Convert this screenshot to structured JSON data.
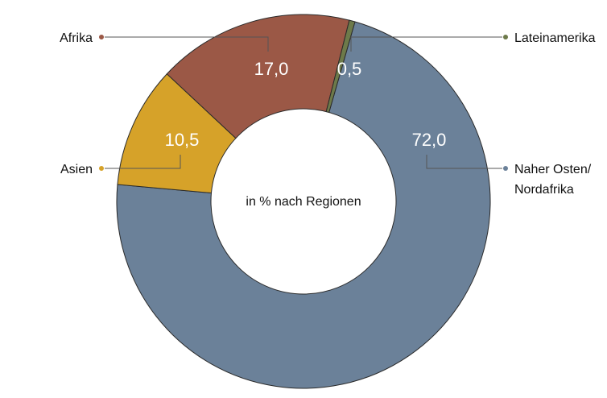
{
  "chart_data": {
    "type": "pie",
    "donut": true,
    "center_label": "in % nach Regionen",
    "categories": [
      "Naher Osten/ Nordafrika",
      "Asien",
      "Afrika",
      "Lateinamerika"
    ],
    "values": [
      72.0,
      10.5,
      17.0,
      0.5
    ],
    "value_labels": [
      "72,0",
      "10,5",
      "17,0",
      "0,5"
    ],
    "colors": [
      "#6b8199",
      "#d6a229",
      "#9b5846",
      "#6d7a4a"
    ],
    "legend": [
      {
        "lines": [
          "Naher Osten/",
          "Nordafrika"
        ],
        "color": "#6b8199"
      },
      {
        "lines": [
          "Asien"
        ],
        "color": "#d6a229"
      },
      {
        "lines": [
          "Afrika"
        ],
        "color": "#9b5846"
      },
      {
        "lines": [
          "Lateinamerika"
        ],
        "color": "#6d7a4a"
      }
    ]
  }
}
